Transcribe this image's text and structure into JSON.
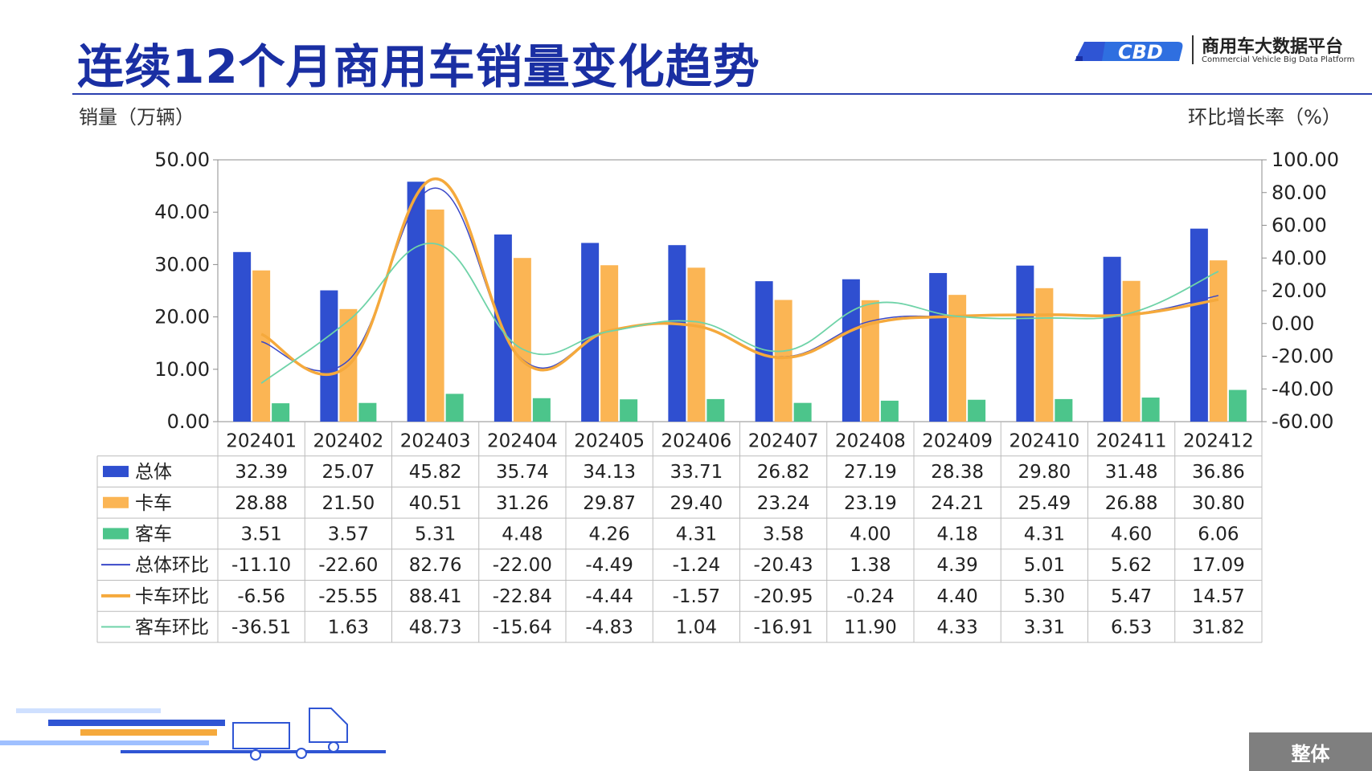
{
  "title": "连续12个月商用车销量变化趋势",
  "logo": {
    "text_cn": "商用车大数据平台",
    "text_en": "Commercial Vehicle Big Data Platform",
    "mark": "CBD"
  },
  "left_axis_unit": "销量（万辆）",
  "right_axis_unit": "环比增长率（%）",
  "corner_tag": "整体",
  "colors": {
    "总体": "#2f4fd0",
    "卡车": "#fbb554",
    "客车": "#4cc58b",
    "总体环比": "#3a48c8",
    "卡车环比": "#f5a93c",
    "客车环比": "#6fd3a8",
    "title": "#1a2fa3"
  },
  "chart_data": {
    "type": "bar",
    "title": "连续12个月商用车销量变化趋势",
    "categories": [
      "202401",
      "202402",
      "202403",
      "202404",
      "202405",
      "202406",
      "202407",
      "202408",
      "202409",
      "202410",
      "202411",
      "202412"
    ],
    "ylabel": "销量（万辆）",
    "y2label": "环比增长率（%）",
    "ylim": [
      0,
      50
    ],
    "y2lim": [
      -60,
      100
    ],
    "yticks": [
      "0.00",
      "10.00",
      "20.00",
      "30.00",
      "40.00",
      "50.00"
    ],
    "y2ticks": [
      "-60.00",
      "-40.00",
      "-20.00",
      "0.00",
      "20.00",
      "40.00",
      "60.00",
      "80.00",
      "100.00"
    ],
    "series": [
      {
        "name": "总体",
        "kind": "bar",
        "axis": "left",
        "values": [
          32.39,
          25.07,
          45.82,
          35.74,
          34.13,
          33.71,
          26.82,
          27.19,
          28.38,
          29.8,
          31.48,
          36.86
        ],
        "labels": [
          "32.39",
          "25.07",
          "45.82",
          "35.74",
          "34.13",
          "33.71",
          "26.82",
          "27.19",
          "28.38",
          "29.80",
          "31.48",
          "36.86"
        ]
      },
      {
        "name": "卡车",
        "kind": "bar",
        "axis": "left",
        "values": [
          28.88,
          21.5,
          40.51,
          31.26,
          29.87,
          29.4,
          23.24,
          23.19,
          24.21,
          25.49,
          26.88,
          30.8
        ],
        "labels": [
          "28.88",
          "21.50",
          "40.51",
          "31.26",
          "29.87",
          "29.40",
          "23.24",
          "23.19",
          "24.21",
          "25.49",
          "26.88",
          "30.80"
        ]
      },
      {
        "name": "客车",
        "kind": "bar",
        "axis": "left",
        "values": [
          3.51,
          3.57,
          5.31,
          4.48,
          4.26,
          4.31,
          3.58,
          4.0,
          4.18,
          4.31,
          4.6,
          6.06
        ],
        "labels": [
          "3.51",
          "3.57",
          "5.31",
          "4.48",
          "4.26",
          "4.31",
          "3.58",
          "4.00",
          "4.18",
          "4.31",
          "4.60",
          "6.06"
        ]
      },
      {
        "name": "总体环比",
        "kind": "line",
        "axis": "right",
        "values": [
          -11.1,
          -22.6,
          82.76,
          -22.0,
          -4.49,
          -1.24,
          -20.43,
          1.38,
          4.39,
          5.01,
          5.62,
          17.09
        ],
        "labels": [
          "-11.10",
          "-22.60",
          "82.76",
          "-22.00",
          "-4.49",
          "-1.24",
          "-20.43",
          "1.38",
          "4.39",
          "5.01",
          "5.62",
          "17.09"
        ]
      },
      {
        "name": "卡车环比",
        "kind": "line",
        "axis": "right",
        "values": [
          -6.56,
          -25.55,
          88.41,
          -22.84,
          -4.44,
          -1.57,
          -20.95,
          -0.24,
          4.4,
          5.3,
          5.47,
          14.57
        ],
        "labels": [
          "-6.56",
          "-25.55",
          "88.41",
          "-22.84",
          "-4.44",
          "-1.57",
          "-20.95",
          "-0.24",
          "4.40",
          "5.30",
          "5.47",
          "14.57"
        ]
      },
      {
        "name": "客车环比",
        "kind": "line",
        "axis": "right",
        "values": [
          -36.51,
          1.63,
          48.73,
          -15.64,
          -4.83,
          1.04,
          -16.91,
          11.9,
          4.33,
          3.31,
          6.53,
          31.82
        ],
        "labels": [
          "-36.51",
          "1.63",
          "48.73",
          "-15.64",
          "-4.83",
          "1.04",
          "-16.91",
          "11.90",
          "4.33",
          "3.31",
          "6.53",
          "31.82"
        ]
      }
    ],
    "grid": false,
    "legend": "data-table"
  }
}
